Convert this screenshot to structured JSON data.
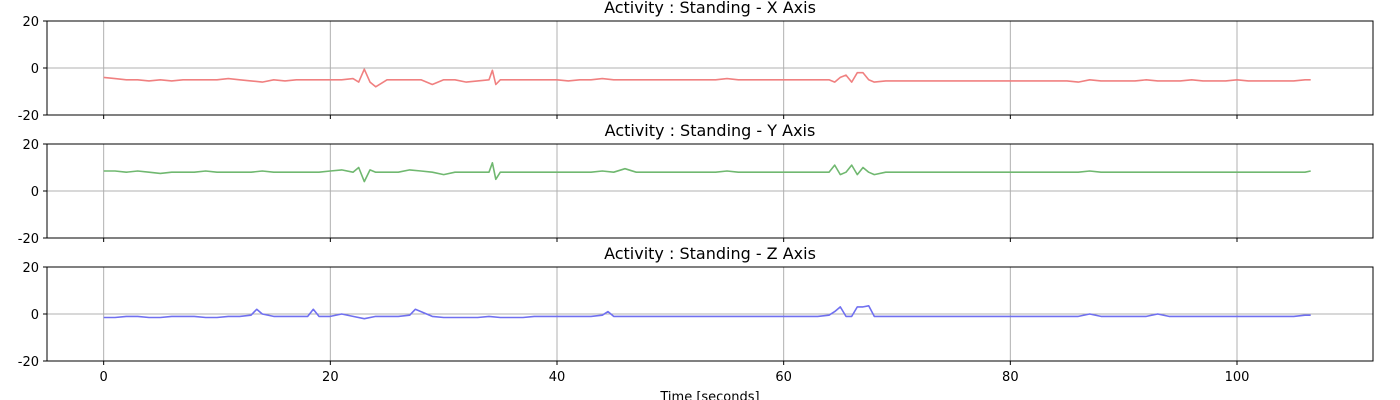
{
  "chart_data": [
    {
      "type": "line",
      "title": "Activity : Standing - X Axis",
      "xlabel": "",
      "ylabel": "",
      "xlim": [
        -5,
        112
      ],
      "ylim": [
        -20,
        20
      ],
      "xticks": [
        0,
        20,
        40,
        60,
        80,
        100
      ],
      "yticks": [
        -20,
        0,
        20
      ],
      "show_xtick_labels": false,
      "grid": true,
      "series": [
        {
          "color": "#f08080",
          "x": [
            0,
            1,
            2,
            3,
            4,
            5,
            6,
            7,
            8,
            9,
            10,
            11,
            12,
            13,
            14,
            15,
            16,
            17,
            18,
            19,
            20,
            21,
            22,
            22.5,
            23,
            23.5,
            24,
            25,
            26,
            27,
            28,
            29,
            30,
            31,
            32,
            33,
            34,
            34.3,
            34.6,
            35,
            36,
            37,
            38,
            39,
            40,
            41,
            42,
            43,
            44,
            45,
            46,
            47,
            48,
            49,
            50,
            51,
            52,
            53,
            54,
            55,
            56,
            57,
            58,
            59,
            60,
            61,
            62,
            63,
            64,
            64.5,
            65,
            65.5,
            66,
            66.5,
            67,
            67.5,
            68,
            69,
            70,
            71,
            72,
            73,
            74,
            75,
            76,
            77,
            78,
            79,
            80,
            81,
            82,
            83,
            84,
            85,
            86,
            87,
            88,
            89,
            90,
            91,
            92,
            93,
            94,
            95,
            96,
            97,
            98,
            99,
            100,
            101,
            102,
            103,
            104,
            105,
            106,
            106.5
          ],
          "values": [
            -4,
            -4.5,
            -5,
            -5,
            -5.5,
            -5,
            -5.5,
            -5,
            -5,
            -5,
            -5,
            -4.5,
            -5,
            -5.5,
            -6,
            -5,
            -5.5,
            -5,
            -5,
            -5,
            -5,
            -5,
            -4.5,
            -6,
            -0.5,
            -6,
            -8,
            -5,
            -5,
            -5,
            -5,
            -7,
            -5,
            -5,
            -6,
            -5.5,
            -5,
            -1,
            -7,
            -5,
            -5,
            -5,
            -5,
            -5,
            -5,
            -5.5,
            -5,
            -5,
            -4.5,
            -5,
            -5,
            -5,
            -5,
            -5,
            -5,
            -5,
            -5,
            -5,
            -5,
            -4.5,
            -5,
            -5,
            -5,
            -5,
            -5,
            -5,
            -5,
            -5,
            -5,
            -6,
            -4,
            -3,
            -6,
            -2,
            -2,
            -5,
            -6,
            -5.5,
            -5.5,
            -5.5,
            -5.5,
            -5.5,
            -5.5,
            -5.5,
            -5.5,
            -5.5,
            -5.5,
            -5.5,
            -5.5,
            -5.5,
            -5.5,
            -5.5,
            -5.5,
            -5.5,
            -6,
            -5,
            -5.5,
            -5.5,
            -5.5,
            -5.5,
            -5,
            -5.5,
            -5.5,
            -5.5,
            -5,
            -5.5,
            -5.5,
            -5.5,
            -5,
            -5.5,
            -5.5,
            -5.5,
            -5.5,
            -5.5,
            -5,
            -5
          ]
        }
      ]
    },
    {
      "type": "line",
      "title": "Activity : Standing - Y Axis",
      "xlabel": "",
      "ylabel": "",
      "xlim": [
        -5,
        112
      ],
      "ylim": [
        -20,
        20
      ],
      "xticks": [
        0,
        20,
        40,
        60,
        80,
        100
      ],
      "yticks": [
        -20,
        0,
        20
      ],
      "show_xtick_labels": false,
      "grid": true,
      "series": [
        {
          "color": "#70b870",
          "x": [
            0,
            1,
            2,
            3,
            4,
            5,
            6,
            7,
            8,
            9,
            10,
            11,
            12,
            13,
            14,
            15,
            16,
            17,
            18,
            19,
            20,
            21,
            22,
            22.5,
            23,
            23.5,
            24,
            25,
            26,
            27,
            28,
            29,
            30,
            31,
            32,
            33,
            34,
            34.3,
            34.6,
            35,
            36,
            37,
            38,
            39,
            40,
            41,
            42,
            43,
            44,
            45,
            46,
            47,
            48,
            49,
            50,
            51,
            52,
            53,
            54,
            55,
            56,
            57,
            58,
            59,
            60,
            61,
            62,
            63,
            64,
            64.5,
            65,
            65.5,
            66,
            66.5,
            67,
            67.5,
            68,
            69,
            70,
            71,
            72,
            73,
            74,
            75,
            76,
            77,
            78,
            79,
            80,
            81,
            82,
            83,
            84,
            85,
            86,
            87,
            88,
            89,
            90,
            91,
            92,
            93,
            94,
            95,
            96,
            97,
            98,
            99,
            100,
            101,
            102,
            103,
            104,
            105,
            106,
            106.5
          ],
          "values": [
            8.5,
            8.5,
            8,
            8.5,
            8,
            7.5,
            8,
            8,
            8,
            8.5,
            8,
            8,
            8,
            8,
            8.5,
            8,
            8,
            8,
            8,
            8,
            8.5,
            9,
            8,
            10,
            4,
            9,
            8,
            8,
            8,
            9,
            8.5,
            8,
            7,
            8,
            8,
            8,
            8,
            12,
            5,
            8,
            8,
            8,
            8,
            8,
            8,
            8,
            8,
            8,
            8.5,
            8,
            9.5,
            8,
            8,
            8,
            8,
            8,
            8,
            8,
            8,
            8.5,
            8,
            8,
            8,
            8,
            8,
            8,
            8,
            8,
            8,
            11,
            7,
            8,
            11,
            7,
            10,
            8,
            7,
            8,
            8,
            8,
            8,
            8,
            8,
            8,
            8,
            8,
            8,
            8,
            8,
            8,
            8,
            8,
            8,
            8,
            8,
            8.5,
            8,
            8,
            8,
            8,
            8,
            8,
            8,
            8,
            8,
            8,
            8,
            8,
            8,
            8,
            8,
            8,
            8,
            8,
            8,
            8.5
          ]
        }
      ]
    },
    {
      "type": "line",
      "title": "Activity : Standing - Z Axis",
      "xlabel": "Time [seconds]",
      "ylabel": "",
      "xlim": [
        -5,
        112
      ],
      "ylim": [
        -20,
        20
      ],
      "xticks": [
        0,
        20,
        40,
        60,
        80,
        100
      ],
      "yticks": [
        -20,
        0,
        20
      ],
      "show_xtick_labels": true,
      "grid": true,
      "series": [
        {
          "color": "#7070f0",
          "x": [
            0,
            1,
            2,
            3,
            4,
            5,
            6,
            7,
            8,
            9,
            10,
            11,
            12,
            13,
            13.5,
            14,
            15,
            16,
            17,
            18,
            18.5,
            19,
            20,
            21,
            22,
            23,
            24,
            25,
            26,
            27,
            27.5,
            28,
            29,
            30,
            31,
            32,
            33,
            34,
            35,
            36,
            37,
            38,
            39,
            40,
            41,
            42,
            43,
            44,
            44.5,
            45,
            46,
            47,
            48,
            49,
            50,
            51,
            52,
            53,
            54,
            55,
            56,
            57,
            58,
            59,
            60,
            61,
            62,
            63,
            64,
            64.5,
            65,
            65.5,
            66,
            66.5,
            67,
            67.5,
            68,
            69,
            70,
            71,
            72,
            73,
            74,
            75,
            76,
            77,
            78,
            79,
            80,
            81,
            82,
            83,
            84,
            85,
            86,
            87,
            88,
            89,
            90,
            91,
            92,
            93,
            94,
            95,
            96,
            97,
            98,
            99,
            100,
            101,
            102,
            103,
            104,
            105,
            106,
            106.5
          ],
          "values": [
            -1.5,
            -1.5,
            -1,
            -1,
            -1.5,
            -1.5,
            -1,
            -1,
            -1,
            -1.5,
            -1.5,
            -1,
            -1,
            -0.5,
            2,
            0,
            -1,
            -1,
            -1,
            -1,
            2,
            -1,
            -1,
            0,
            -1,
            -2,
            -1,
            -1,
            -1,
            -0.5,
            2,
            1,
            -1,
            -1.5,
            -1.5,
            -1.5,
            -1.5,
            -1,
            -1.5,
            -1.5,
            -1.5,
            -1,
            -1,
            -1,
            -1,
            -1,
            -1,
            -0.5,
            1,
            -1,
            -1,
            -1,
            -1,
            -1,
            -1,
            -1,
            -1,
            -1,
            -1,
            -1,
            -1,
            -1,
            -1,
            -1,
            -1,
            -1,
            -1,
            -1,
            -0.5,
            1,
            3,
            -1,
            -1,
            3,
            3,
            3.5,
            -1,
            -1,
            -1,
            -1,
            -1,
            -1,
            -1,
            -1,
            -1,
            -1,
            -1,
            -1,
            -1,
            -1,
            -1,
            -1,
            -1,
            -1,
            -1,
            0,
            -1,
            -1,
            -1,
            -1,
            -1,
            0,
            -1,
            -1,
            -1,
            -1,
            -1,
            -1,
            -1,
            -1,
            -1,
            -1,
            -1,
            -1,
            -0.5,
            -0.5
          ]
        }
      ]
    }
  ]
}
